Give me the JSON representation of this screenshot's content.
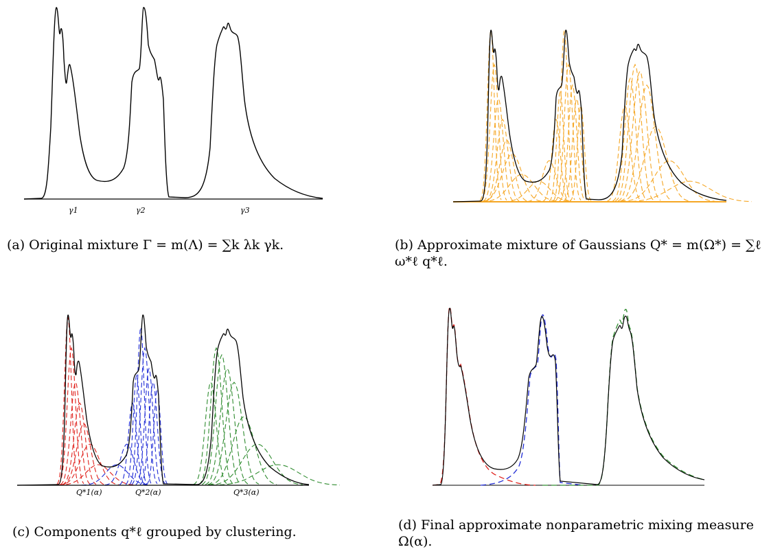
{
  "figure": {
    "panels": [
      {
        "id": "a",
        "label": "(a)",
        "caption": "Original mixture Γ = m(Λ) = ∑k λk γk.",
        "component_labels": [
          "γ1",
          "γ2",
          "γ3"
        ],
        "dashed_color": null,
        "groups": []
      },
      {
        "id": "b",
        "label": "(b)",
        "caption": "Approximate mixture of Gaussians Q* = m(Ω*) = ∑ℓ ω*ℓ q*ℓ.",
        "component_labels": [],
        "dashed_color": "#f5a623",
        "groups": []
      },
      {
        "id": "c",
        "label": "(c)",
        "caption": "Components q*ℓ grouped by clustering.",
        "component_labels": [
          "Q*1(α)",
          "Q*2(α)",
          "Q*3(α)"
        ],
        "dashed_colors": [
          "#e0201b",
          "#1f2bd6",
          "#2e8b2e"
        ]
      },
      {
        "id": "d",
        "label": "(d)",
        "caption": "Final approximate nonparametric mixing measure Ω(α).",
        "component_labels": [],
        "dashed_colors": [
          "#e0201b",
          "#1f2bd6",
          "#2e8b2e"
        ]
      }
    ]
  }
}
